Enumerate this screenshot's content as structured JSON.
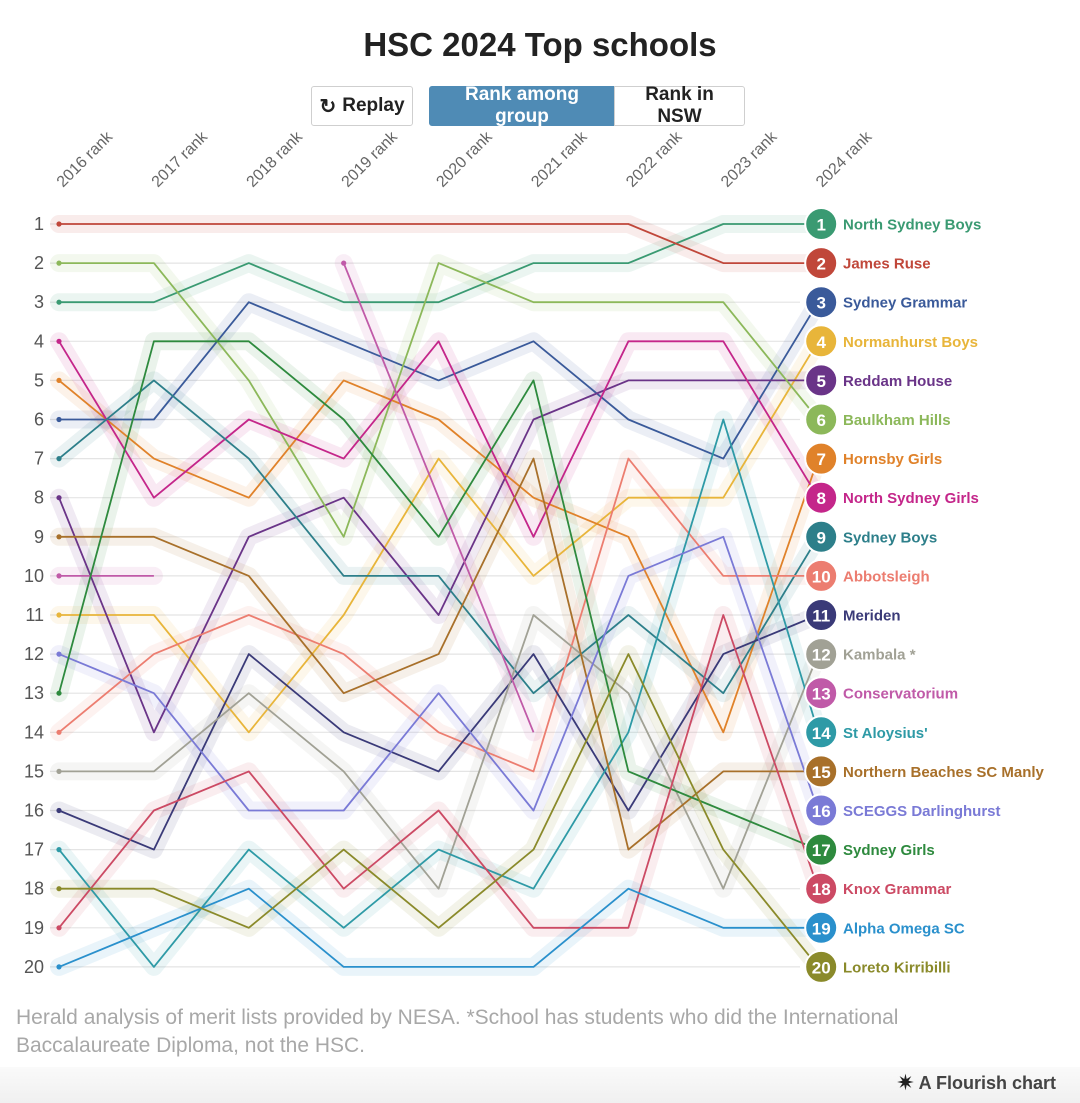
{
  "title": "HSC 2024 Top schools",
  "controls": {
    "replay_icon": "replay-icon",
    "replay_label": "Replay",
    "tab_group_label": "Rank among group",
    "tab_nsw_label": "Rank in NSW",
    "active_tab": "group"
  },
  "footnote": "Herald analysis of merit lists provided by NESA. *School has students who did the International Baccalaureate Diploma, not the HSC.",
  "credit": {
    "icon": "flourish-star-icon",
    "label": "A Flourish chart"
  },
  "chart_data": {
    "type": "line",
    "variant": "bump",
    "x": [
      "2016 rank",
      "2017 rank",
      "2018 rank",
      "2019 rank",
      "2020 rank",
      "2021 rank",
      "2022 rank",
      "2023 rank",
      "2024 rank"
    ],
    "y_ticks": [
      "1",
      "2",
      "3",
      "4",
      "5",
      "6",
      "7",
      "8",
      "9",
      "10",
      "11",
      "12",
      "13",
      "14",
      "15",
      "16",
      "17",
      "18",
      "19",
      "20"
    ],
    "ylim": [
      1,
      20
    ],
    "y_reversed": true,
    "grid": true,
    "legend": "right, at end of each line",
    "series": [
      {
        "name": "North Sydney Boys",
        "color": "#3a9a72",
        "values": [
          3,
          3,
          2,
          3,
          3,
          2,
          2,
          1,
          1
        ]
      },
      {
        "name": "James Ruse",
        "color": "#c0473a",
        "values": [
          1,
          1,
          1,
          1,
          1,
          1,
          1,
          2,
          2
        ]
      },
      {
        "name": "Sydney Grammar",
        "color": "#3a5a9a",
        "values": [
          6,
          6,
          3,
          4,
          5,
          4,
          6,
          7,
          3
        ]
      },
      {
        "name": "Normanhurst Boys",
        "color": "#e8b53a",
        "values": [
          11,
          11,
          14,
          11,
          7,
          10,
          8,
          8,
          4
        ]
      },
      {
        "name": "Reddam House",
        "color": "#6a3488",
        "values": [
          8,
          14,
          9,
          8,
          11,
          6,
          5,
          5,
          5
        ]
      },
      {
        "name": "Baulkham Hills",
        "color": "#8cb85a",
        "values": [
          2,
          2,
          5,
          9,
          2,
          3,
          3,
          3,
          6
        ]
      },
      {
        "name": "Hornsby Girls",
        "color": "#e0822a",
        "values": [
          5,
          7,
          8,
          5,
          6,
          8,
          9,
          14,
          7
        ]
      },
      {
        "name": "North Sydney Girls",
        "color": "#c4268a",
        "values": [
          4,
          8,
          6,
          7,
          4,
          9,
          4,
          4,
          8
        ]
      },
      {
        "name": "Sydney Boys",
        "color": "#2d7f8a",
        "values": [
          7,
          5,
          7,
          10,
          10,
          13,
          11,
          13,
          9
        ]
      },
      {
        "name": "Abbotsleigh",
        "color": "#ec7d70",
        "values": [
          14,
          12,
          11,
          12,
          14,
          15,
          7,
          10,
          10
        ]
      },
      {
        "name": "Meriden",
        "color": "#3a3a78",
        "values": [
          16,
          17,
          12,
          14,
          15,
          12,
          16,
          12,
          11
        ]
      },
      {
        "name": "Kambala *",
        "color": "#a1a195",
        "values": [
          15,
          15,
          13,
          15,
          18,
          11,
          13,
          18,
          12
        ]
      },
      {
        "name": "Conservatorium",
        "color": "#c05aa8",
        "values": [
          10,
          10,
          null,
          2,
          8,
          14,
          null,
          null,
          13
        ]
      },
      {
        "name": "St Aloysius'",
        "color": "#2e9aa6",
        "values": [
          17,
          20,
          17,
          19,
          17,
          18,
          14,
          6,
          14
        ]
      },
      {
        "name": "Northern Beaches SC Manly",
        "color": "#a8702a",
        "values": [
          9,
          9,
          10,
          13,
          12,
          7,
          17,
          15,
          15
        ]
      },
      {
        "name": "SCEGGS Darlinghurst",
        "color": "#7a7ad6",
        "values": [
          12,
          13,
          16,
          16,
          13,
          16,
          10,
          9,
          16
        ]
      },
      {
        "name": "Sydney Girls",
        "color": "#2e8a3e",
        "values": [
          13,
          4,
          4,
          6,
          9,
          5,
          15,
          16,
          17
        ]
      },
      {
        "name": "Knox Grammar",
        "color": "#cc4a64",
        "values": [
          19,
          16,
          15,
          18,
          16,
          19,
          19,
          11,
          18
        ]
      },
      {
        "name": "Alpha Omega SC",
        "color": "#2a90cc",
        "values": [
          20,
          19,
          18,
          20,
          20,
          20,
          18,
          19,
          19
        ]
      },
      {
        "name": "Loreto Kirribilli",
        "color": "#8a8a2a",
        "values": [
          18,
          18,
          19,
          17,
          19,
          17,
          12,
          17,
          20
        ]
      }
    ]
  }
}
